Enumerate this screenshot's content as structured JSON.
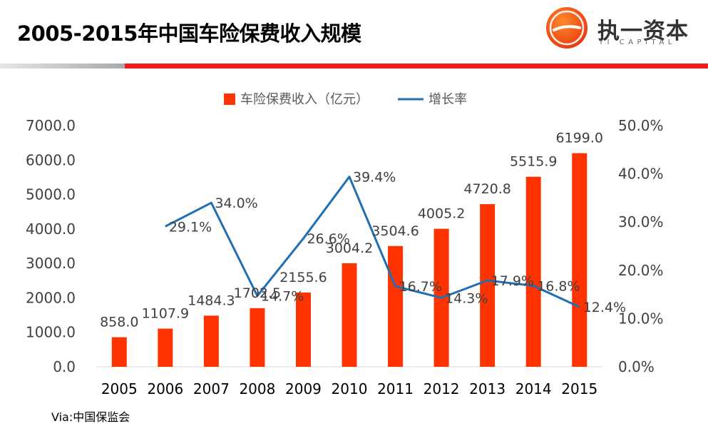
{
  "header": {
    "title": "2005-2015年中国车险保费收入规模",
    "brand_cn": "执一资本",
    "brand_en": "YI CAPITAL"
  },
  "source": "Via:中国保监会",
  "colors": {
    "bar": "#ff3300",
    "line": "#1f6fb2",
    "accent": "#ee1c1c"
  },
  "chart_data": {
    "type": "bar",
    "title": "2005-2015年中国车险保费收入规模",
    "categories": [
      "2005",
      "2006",
      "2007",
      "2008",
      "2009",
      "2010",
      "2011",
      "2012",
      "2013",
      "2014",
      "2015"
    ],
    "series": [
      {
        "name": "车险保费收入（亿元）",
        "type": "bar",
        "axis": "left",
        "values": [
          858.0,
          1107.9,
          1484.3,
          1702.5,
          2155.6,
          3004.2,
          3504.6,
          4005.2,
          4720.8,
          5515.9,
          6199.0
        ],
        "labels": [
          "858.0",
          "1107.9",
          "1484.3",
          "1702.5",
          "2155.6",
          "3004.2",
          "3504.6",
          "4005.2",
          "4720.8",
          "5515.9",
          "6199.0"
        ]
      },
      {
        "name": "增长率",
        "type": "line",
        "axis": "right",
        "values": [
          null,
          29.1,
          34.0,
          14.7,
          26.6,
          39.4,
          16.7,
          14.3,
          17.9,
          16.8,
          12.4
        ],
        "labels": [
          null,
          "29.1%",
          "34.0%",
          "14.7%",
          "26.6%",
          "39.4%",
          "16.7%",
          "14.3%",
          "17.9%",
          "16.8%",
          "12.4%"
        ]
      }
    ],
    "y_left": {
      "min": 0,
      "max": 7000,
      "ticks": [
        "0.0",
        "1000.0",
        "2000.0",
        "3000.0",
        "4000.0",
        "5000.0",
        "6000.0",
        "7000.0"
      ]
    },
    "y_right": {
      "min": 0,
      "max": 50,
      "ticks": [
        "0.0%",
        "10.0%",
        "20.0%",
        "30.0%",
        "40.0%",
        "50.0%"
      ]
    },
    "legend": {
      "position": "top",
      "items": [
        "车险保费收入（亿元）",
        "增长率"
      ]
    },
    "grid": false
  }
}
